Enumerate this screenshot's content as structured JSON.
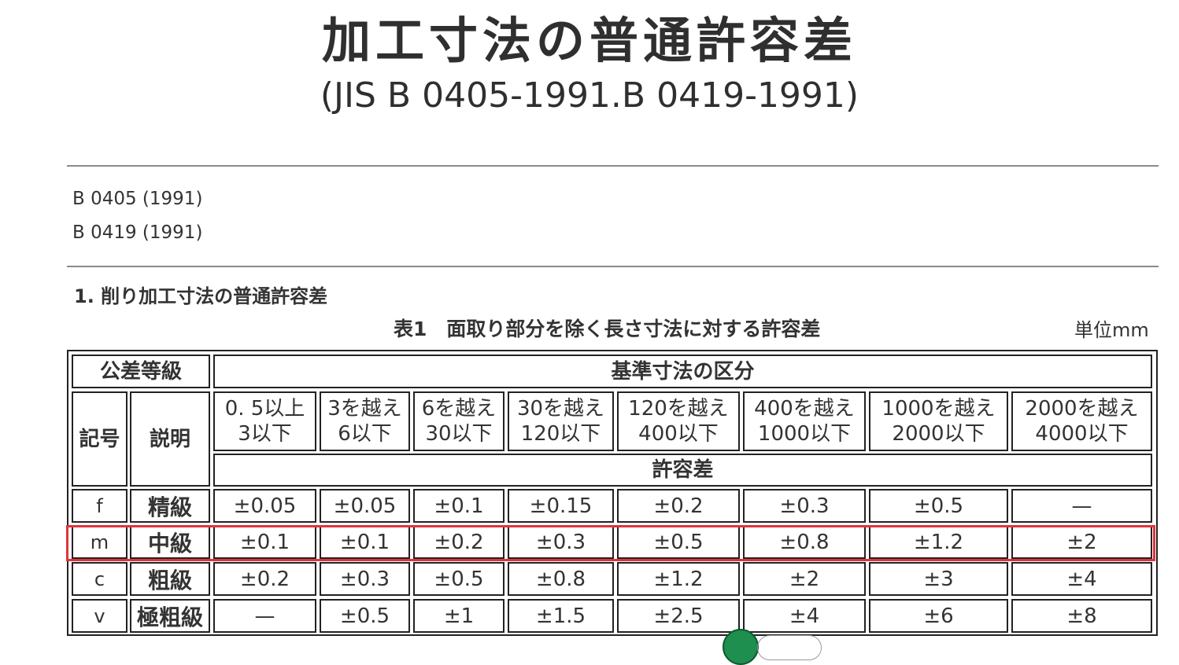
{
  "header": {
    "title": "加工寸法の普通許容差",
    "subtitle": "(JIS B 0405-1991.B 0419-1991)"
  },
  "standards": [
    "B 0405 (1991)",
    "B 0419 (1991)"
  ],
  "section_title": "1. 削り加工寸法の普通許容差",
  "table": {
    "caption": "表1　面取り部分を除く長さ寸法に対する許容差",
    "unit": "単位mm",
    "grade_header": "公差等級",
    "division_header": "基準寸法の区分",
    "symbol_header": "記号",
    "description_header": "説明",
    "tolerance_header": "許容差",
    "ranges": [
      {
        "line1": "0. 5以上",
        "line2": "3以下"
      },
      {
        "line1": "3を越え",
        "line2": "6以下"
      },
      {
        "line1": "6を越え",
        "line2": "30以下"
      },
      {
        "line1": "30を越え",
        "line2": "120以下"
      },
      {
        "line1": "120を越え",
        "line2": "400以下"
      },
      {
        "line1": "400を越え",
        "line2": "1000以下"
      },
      {
        "line1": "1000を越え",
        "line2": "2000以下"
      },
      {
        "line1": "2000を越え",
        "line2": "4000以下"
      }
    ],
    "rows": [
      {
        "symbol": "f",
        "description": "精級",
        "values": [
          "±0.05",
          "±0.05",
          "±0.1",
          "±0.15",
          "±0.2",
          "±0.3",
          "±0.5",
          "—"
        ]
      },
      {
        "symbol": "m",
        "description": "中級",
        "values": [
          "±0.1",
          "±0.1",
          "±0.2",
          "±0.3",
          "±0.5",
          "±0.8",
          "±1.2",
          "±2"
        ]
      },
      {
        "symbol": "c",
        "description": "粗級",
        "values": [
          "±0.2",
          "±0.3",
          "±0.5",
          "±0.8",
          "±1.2",
          "±2",
          "±3",
          "±4"
        ]
      },
      {
        "symbol": "v",
        "description": "極粗級",
        "values": [
          "—",
          "±0.5",
          "±1",
          "±1.5",
          "±2.5",
          "±4",
          "±6",
          "±8"
        ]
      }
    ],
    "highlighted_row": "m",
    "highlight_color": "#e0333c"
  }
}
